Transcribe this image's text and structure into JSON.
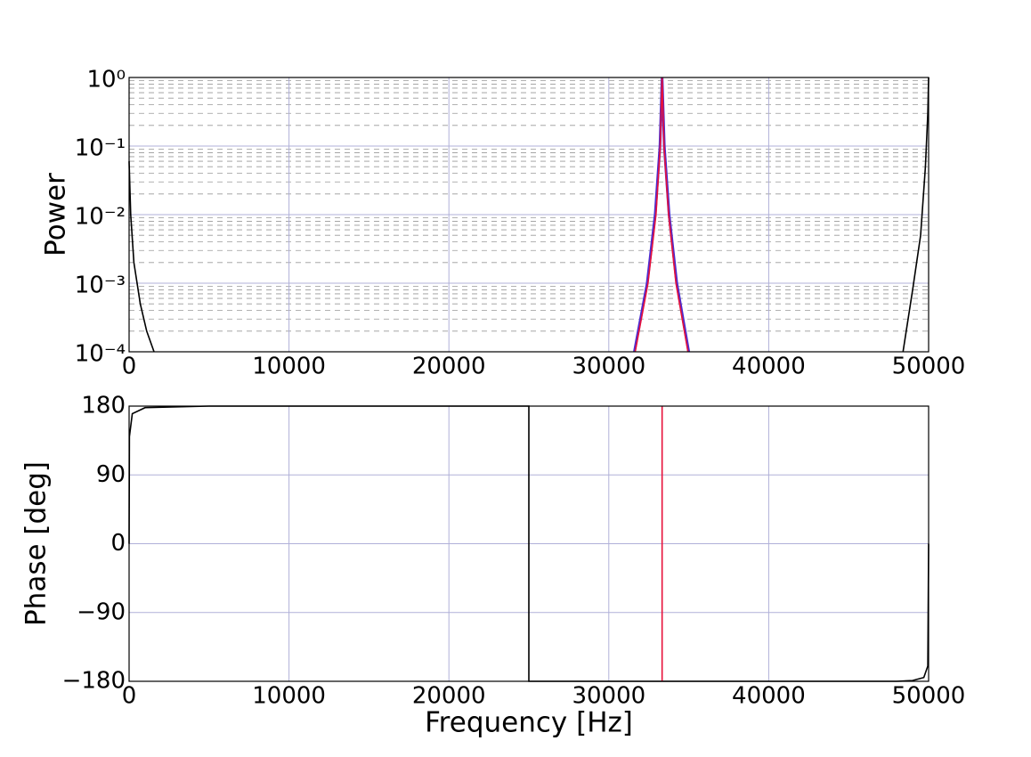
{
  "chart_data": [
    {
      "type": "line",
      "ylabel": "Power",
      "yscale": "log",
      "grid": true,
      "xlim": [
        0,
        50000
      ],
      "xticks": [
        0,
        10000,
        20000,
        30000,
        40000,
        50000
      ],
      "ylim": [
        0.0001,
        1
      ],
      "yticks": [
        {
          "value": 1,
          "label": "10⁰"
        },
        {
          "value": 0.1,
          "label": "10⁻¹"
        },
        {
          "value": 0.01,
          "label": "10⁻²"
        },
        {
          "value": 0.001,
          "label": "10⁻³"
        },
        {
          "value": 0.0001,
          "label": "10⁻⁴"
        }
      ],
      "yminorticks": [
        0.0002,
        0.0003,
        0.0004,
        0.0005,
        0.0006,
        0.0007,
        0.0008,
        0.0009,
        0.002,
        0.003,
        0.004,
        0.005,
        0.006,
        0.007,
        0.008,
        0.009,
        0.02,
        0.03,
        0.04,
        0.05,
        0.06,
        0.07,
        0.08,
        0.09,
        0.2,
        0.3,
        0.4,
        0.5,
        0.6,
        0.7,
        0.8,
        0.9
      ],
      "series": [
        {
          "color": "#000000",
          "x": [
            0,
            100,
            300,
            700,
            1100,
            1560,
            null,
            48400,
            49000,
            49500,
            49800,
            49950,
            50000
          ],
          "values": [
            0.06,
            0.01,
            0.002,
            0.0005,
            0.0002,
            0.0001,
            null,
            0.0001,
            0.0008,
            0.005,
            0.05,
            0.3,
            1
          ]
        },
        {
          "color": "#4b2bd1",
          "x": [
            31600,
            32400,
            32900,
            33200,
            33333,
            33470,
            33770,
            34250,
            35000
          ],
          "values": [
            0.0001,
            0.001,
            0.01,
            0.1,
            1,
            0.1,
            0.01,
            0.001,
            0.0001
          ]
        },
        {
          "color": "#e8103a",
          "x": [
            31650,
            32450,
            32950,
            33220,
            33333,
            33450,
            33740,
            34200,
            34950
          ],
          "values": [
            0.0001,
            0.001,
            0.01,
            0.1,
            1,
            0.1,
            0.01,
            0.001,
            0.0001
          ]
        }
      ]
    },
    {
      "type": "line",
      "ylabel": "Phase [deg]",
      "xlabel": "Frequency [Hz]",
      "grid": true,
      "xlim": [
        0,
        50000
      ],
      "xticks": [
        0,
        10000,
        20000,
        30000,
        40000,
        50000
      ],
      "ylim": [
        -180,
        180
      ],
      "yticks": [
        180,
        90,
        0,
        {
          "value": -90,
          "label": "−90"
        },
        {
          "value": -180,
          "label": "−180"
        }
      ],
      "series": [
        {
          "color": "#000000",
          "x": [
            0,
            20,
            200,
            1000,
            5000,
            25000,
            25000,
            48000,
            49000,
            49700,
            49950,
            50000
          ],
          "values": [
            0,
            140,
            170,
            178,
            180,
            180,
            -180,
            -180,
            -179,
            -175,
            -160,
            0
          ]
        },
        {
          "color": "#e8103a",
          "x": [
            33333,
            33333
          ],
          "values": [
            -180,
            180
          ]
        }
      ]
    }
  ]
}
